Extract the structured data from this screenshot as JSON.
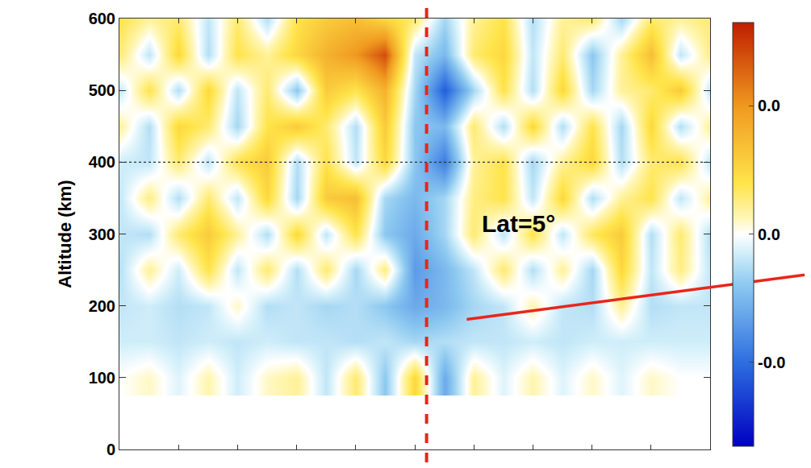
{
  "chart_data": {
    "type": "heatmap",
    "y_label": "Altitude (km)",
    "x": [
      0,
      1,
      2,
      3,
      4,
      5,
      6,
      7,
      8,
      9,
      10,
      11,
      12,
      13,
      14,
      15,
      16,
      17,
      18,
      19,
      20
    ],
    "y": [
      100,
      150,
      200,
      250,
      300,
      350,
      400,
      450,
      500,
      550,
      600
    ],
    "cells": [
      [
        0,
        0.002,
        -0.002,
        0.003,
        -0.003,
        0.002,
        0.004,
        -0.004,
        0.006,
        -0.008,
        0.01,
        -0.012,
        0.004,
        -0.002,
        0.003,
        -0.002,
        0.002,
        -0.002,
        0.002,
        0,
        0
      ],
      [
        -0.003,
        -0.003,
        -0.004,
        -0.003,
        -0.004,
        -0.003,
        -0.004,
        -0.004,
        -0.005,
        -0.004,
        -0.006,
        -0.005,
        -0.004,
        -0.004,
        -0.003,
        -0.004,
        -0.003,
        -0.003,
        -0.003,
        -0.003,
        -0.003
      ],
      [
        -0.004,
        -0.003,
        -0.005,
        -0.004,
        0.002,
        -0.005,
        -0.004,
        -0.006,
        -0.005,
        -0.008,
        -0.012,
        -0.01,
        -0.006,
        -0.004,
        0.003,
        -0.004,
        -0.005,
        0.004,
        -0.005,
        -0.004,
        -0.004
      ],
      [
        -0.005,
        0.004,
        -0.003,
        0.008,
        -0.004,
        0.006,
        -0.005,
        0.006,
        -0.006,
        0.005,
        -0.014,
        -0.01,
        -0.004,
        0.006,
        -0.005,
        0.004,
        -0.006,
        0.01,
        -0.004,
        0.005,
        -0.004
      ],
      [
        -0.004,
        -0.005,
        0.006,
        0.012,
        0.004,
        -0.005,
        0.01,
        -0.004,
        0.008,
        -0.008,
        -0.012,
        -0.006,
        0.006,
        -0.004,
        0.008,
        -0.004,
        0.007,
        0.012,
        -0.005,
        0.006,
        -0.005
      ],
      [
        -0.004,
        0.005,
        -0.005,
        0.006,
        -0.004,
        0.01,
        -0.006,
        0.012,
        0.014,
        -0.006,
        -0.01,
        -0.006,
        0.005,
        0.008,
        -0.004,
        0.01,
        -0.005,
        0.004,
        0.008,
        -0.004,
        0.004
      ],
      [
        -0.003,
        -0.004,
        0.006,
        -0.004,
        0.008,
        0.012,
        -0.005,
        0.008,
        -0.004,
        0.01,
        -0.008,
        -0.018,
        0.004,
        0.008,
        -0.006,
        0.004,
        0.01,
        -0.005,
        0.006,
        0.008,
        -0.004
      ],
      [
        0.004,
        -0.005,
        0.01,
        0.006,
        -0.006,
        0.008,
        0.012,
        0.006,
        -0.005,
        0.012,
        -0.008,
        -0.01,
        0.006,
        -0.005,
        0.01,
        -0.005,
        0.008,
        -0.006,
        0.01,
        -0.005,
        0.004
      ],
      [
        -0.004,
        0.008,
        -0.005,
        0.01,
        -0.004,
        0.006,
        -0.008,
        0.012,
        0.008,
        0.016,
        -0.006,
        -0.022,
        -0.006,
        0.008,
        -0.005,
        0.01,
        -0.006,
        0.004,
        0.006,
        0.012,
        -0.004
      ],
      [
        0.006,
        -0.004,
        0.01,
        -0.005,
        0.008,
        0.004,
        0.01,
        0.016,
        0.02,
        0.028,
        -0.004,
        -0.01,
        0.006,
        0.01,
        -0.004,
        0.006,
        -0.008,
        0.004,
        0.014,
        -0.004,
        0.005
      ],
      [
        0.008,
        0.004,
        0.006,
        -0.004,
        0.006,
        -0.005,
        0.008,
        0.012,
        0.014,
        0.01,
        0.006,
        -0.006,
        0.004,
        0.008,
        -0.005,
        0.004,
        0.006,
        -0.006,
        0.006,
        0.004,
        0.006
      ]
    ],
    "xlim": [
      0,
      20
    ],
    "xticks": [
      0,
      2,
      4,
      6,
      8,
      10,
      12,
      14,
      16,
      18,
      20
    ],
    "ylim": [
      0,
      600
    ],
    "yticks": [
      0,
      100,
      200,
      300,
      400,
      500,
      600
    ],
    "tick_labels": "y",
    "colorbar": {
      "range": [
        -0.033,
        0.033
      ],
      "ticks": [
        {
          "value": 0.02,
          "label": "0.0"
        },
        {
          "value": 0,
          "label": "0.0"
        },
        {
          "value": -0.02,
          "label": "-0.0"
        }
      ]
    },
    "reference_lines": [
      {
        "axis": "x",
        "value": 10.4,
        "color": "#e8261c",
        "line_style": "dash"
      },
      {
        "axis": "y",
        "value": 400,
        "color": "#333333",
        "line_style": "dot"
      }
    ],
    "annotations": [
      {
        "text": "Lat=5°",
        "x": 13.5,
        "y": 315
      }
    ]
  }
}
